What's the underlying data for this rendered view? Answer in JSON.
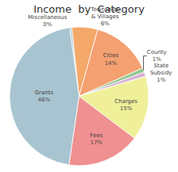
{
  "chart_data": {
    "type": "pie",
    "title": "Income  by  Category",
    "categories": [
      "Miscellaneous",
      "Townships\n& Villages",
      "Cities",
      "County",
      "State\nSubsidy",
      "Charges",
      "Fees",
      "Grants"
    ],
    "values": [
      0.5,
      6.0,
      14.0,
      1.0,
      1.0,
      15.0,
      17.0,
      45.5
    ],
    "value_labels": [
      "0%",
      "6%",
      "14%",
      "1%",
      "1%",
      "15%",
      "17%",
      "46%"
    ],
    "colors": [
      "#a8cdd4",
      "#f4a86a",
      "#f4a070",
      "#90c890",
      "#d8b0d8",
      "#f0f09a",
      "#f09090",
      "#a8c4d0"
    ],
    "data_labels": true
  }
}
